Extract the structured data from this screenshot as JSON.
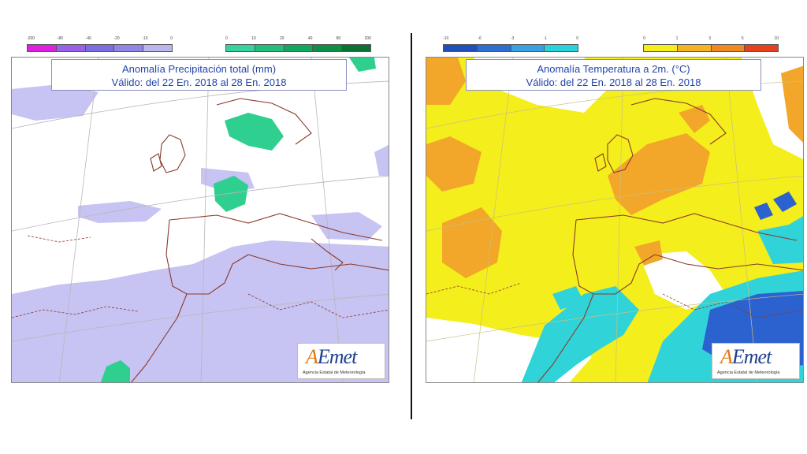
{
  "left_map": {
    "title_line1": "Anomalía Precipitación total (mm)",
    "title_line2": "Válido: del 22 En. 2018 al 28 En. 2018",
    "scale_negative": {
      "ticks": [
        "-200",
        "-80",
        "-40",
        "-20",
        "-10",
        "0"
      ],
      "colors": [
        "#e020e0",
        "#9a60e8",
        "#7a6ee0",
        "#8f86e6",
        "#b9b6f0"
      ]
    },
    "scale_positive": {
      "ticks": [
        "0",
        "10",
        "20",
        "40",
        "80",
        "200"
      ],
      "colors": [
        "#34d49c",
        "#23be7a",
        "#13a860",
        "#0f8f46",
        "#0a7234"
      ]
    }
  },
  "right_map": {
    "title_line1": "Anomalía Temperatura a 2m. (°C)",
    "title_line2": "Válido: del 22 En. 2018 al 28 En. 2018",
    "scale_negative": {
      "ticks": [
        "-10",
        "-6",
        "-3",
        "-1",
        "0"
      ],
      "colors": [
        "#1f4fb8",
        "#2b6fd0",
        "#3aa0e0",
        "#28d4dc"
      ]
    },
    "scale_positive": {
      "ticks": [
        "0",
        "1",
        "3",
        "6",
        "10"
      ],
      "colors": [
        "#f4ee1c",
        "#f5b324",
        "#f08a20",
        "#e8401c"
      ]
    }
  },
  "logo": {
    "wordmark_a": "A",
    "wordmark_rest": "Emet",
    "subtitle": "Agencia Estatal de Meteorología"
  },
  "colors": {
    "title_text": "#2244aa",
    "coastline": "#8b3a2a",
    "divider": "#111111"
  }
}
